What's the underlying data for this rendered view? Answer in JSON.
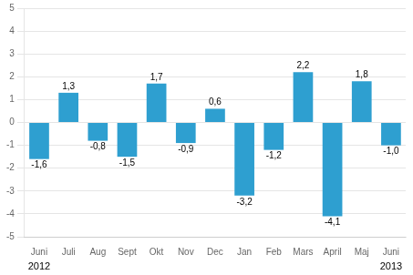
{
  "chart_data": {
    "type": "bar",
    "categories": [
      "Juni",
      "Juli",
      "Aug",
      "Sept",
      "Okt",
      "Nov",
      "Dec",
      "Jan",
      "Feb",
      "Mars",
      "April",
      "Maj",
      "Juni"
    ],
    "values": [
      -1.6,
      1.3,
      -0.8,
      -1.5,
      1.7,
      -0.9,
      0.6,
      -3.2,
      -1.2,
      2.2,
      -4.1,
      1.8,
      -1.0
    ],
    "value_labels": [
      "-1,6",
      "1,3",
      "-0,8",
      "-1,5",
      "1,7",
      "-0,9",
      "0,6",
      "-3,2",
      "-1,2",
      "2,2",
      "-4,1",
      "1,8",
      "-1,0"
    ],
    "data_labels": true,
    "color": "#2E9FD0",
    "ylim": [
      -5,
      5
    ],
    "yticks": [
      -5,
      -4,
      -3,
      -2,
      -1,
      0,
      1,
      2,
      3,
      4,
      5
    ],
    "grid": true,
    "annotations": [
      {
        "text": "2012",
        "index": 0
      },
      {
        "text": "2013",
        "index": 12
      }
    ]
  }
}
